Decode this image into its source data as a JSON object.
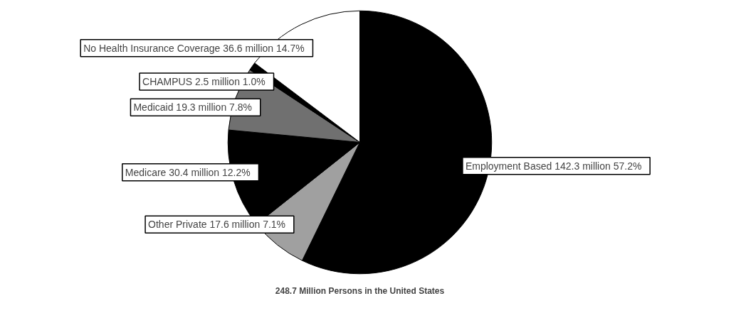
{
  "chart_data": {
    "type": "pie",
    "title": "248.7 Million Persons in the United States",
    "categories": [
      "Employment Based  142.3 million",
      "Other Private  17.6 million",
      "Medicare  30.4 million",
      "Medicaid  19.3 million",
      "CHAMPUS  2.5 million",
      "No Health Insurance Coverage  36.6 million"
    ],
    "values": [
      57.2,
      7.1,
      12.2,
      7.8,
      1.0,
      14.7
    ],
    "value_labels": [
      "57.2%",
      "7.1%",
      "12.2%",
      "7.8%",
      "1.0%",
      "14.7%"
    ],
    "colors": [
      "#000000",
      "#a0a0a0",
      "#000000",
      "#707070",
      "#000000",
      "#ffffff"
    ]
  }
}
